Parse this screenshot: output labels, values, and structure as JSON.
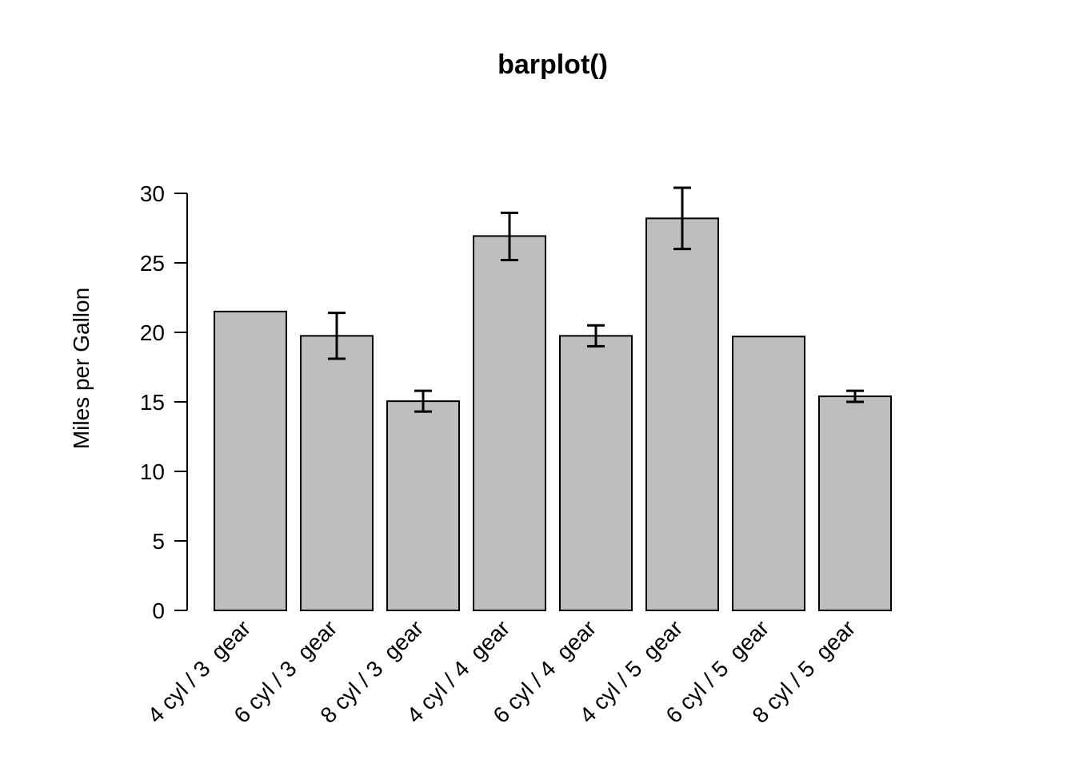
{
  "chart_data": {
    "type": "bar",
    "title": "barplot()",
    "xlabel": "",
    "ylabel": "Miles per Gallon",
    "ylim": [
      0,
      30
    ],
    "yticks": [
      "0",
      "5",
      "10",
      "15",
      "20",
      "25",
      "30"
    ],
    "categories": [
      "4 cyl / 3  gear",
      "6 cyl / 3  gear",
      "8 cyl / 3  gear",
      "4 cyl / 4  gear",
      "6 cyl / 4  gear",
      "4 cyl / 5  gear",
      "6 cyl / 5  gear",
      "8 cyl / 5  gear"
    ],
    "values": [
      21.5,
      19.75,
      15.05,
      26.93,
      19.75,
      28.2,
      19.7,
      15.4
    ],
    "error_low": [
      null,
      18.1,
      14.3,
      25.2,
      19.0,
      26.0,
      null,
      15.0
    ],
    "error_high": [
      null,
      21.4,
      15.8,
      28.6,
      20.5,
      30.4,
      null,
      15.8
    ],
    "bar_color": "#bebebe",
    "grid": false,
    "legend": "none"
  }
}
